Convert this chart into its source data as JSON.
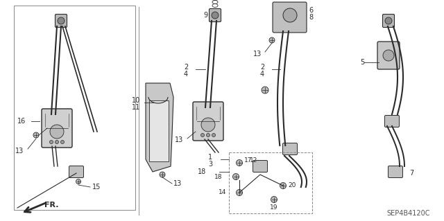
{
  "bg_color": "#ffffff",
  "line_color": "#2a2a2a",
  "diagram_code": "SEP4B4120C",
  "part_color": "#aaaaaa",
  "border_color": "#888888"
}
